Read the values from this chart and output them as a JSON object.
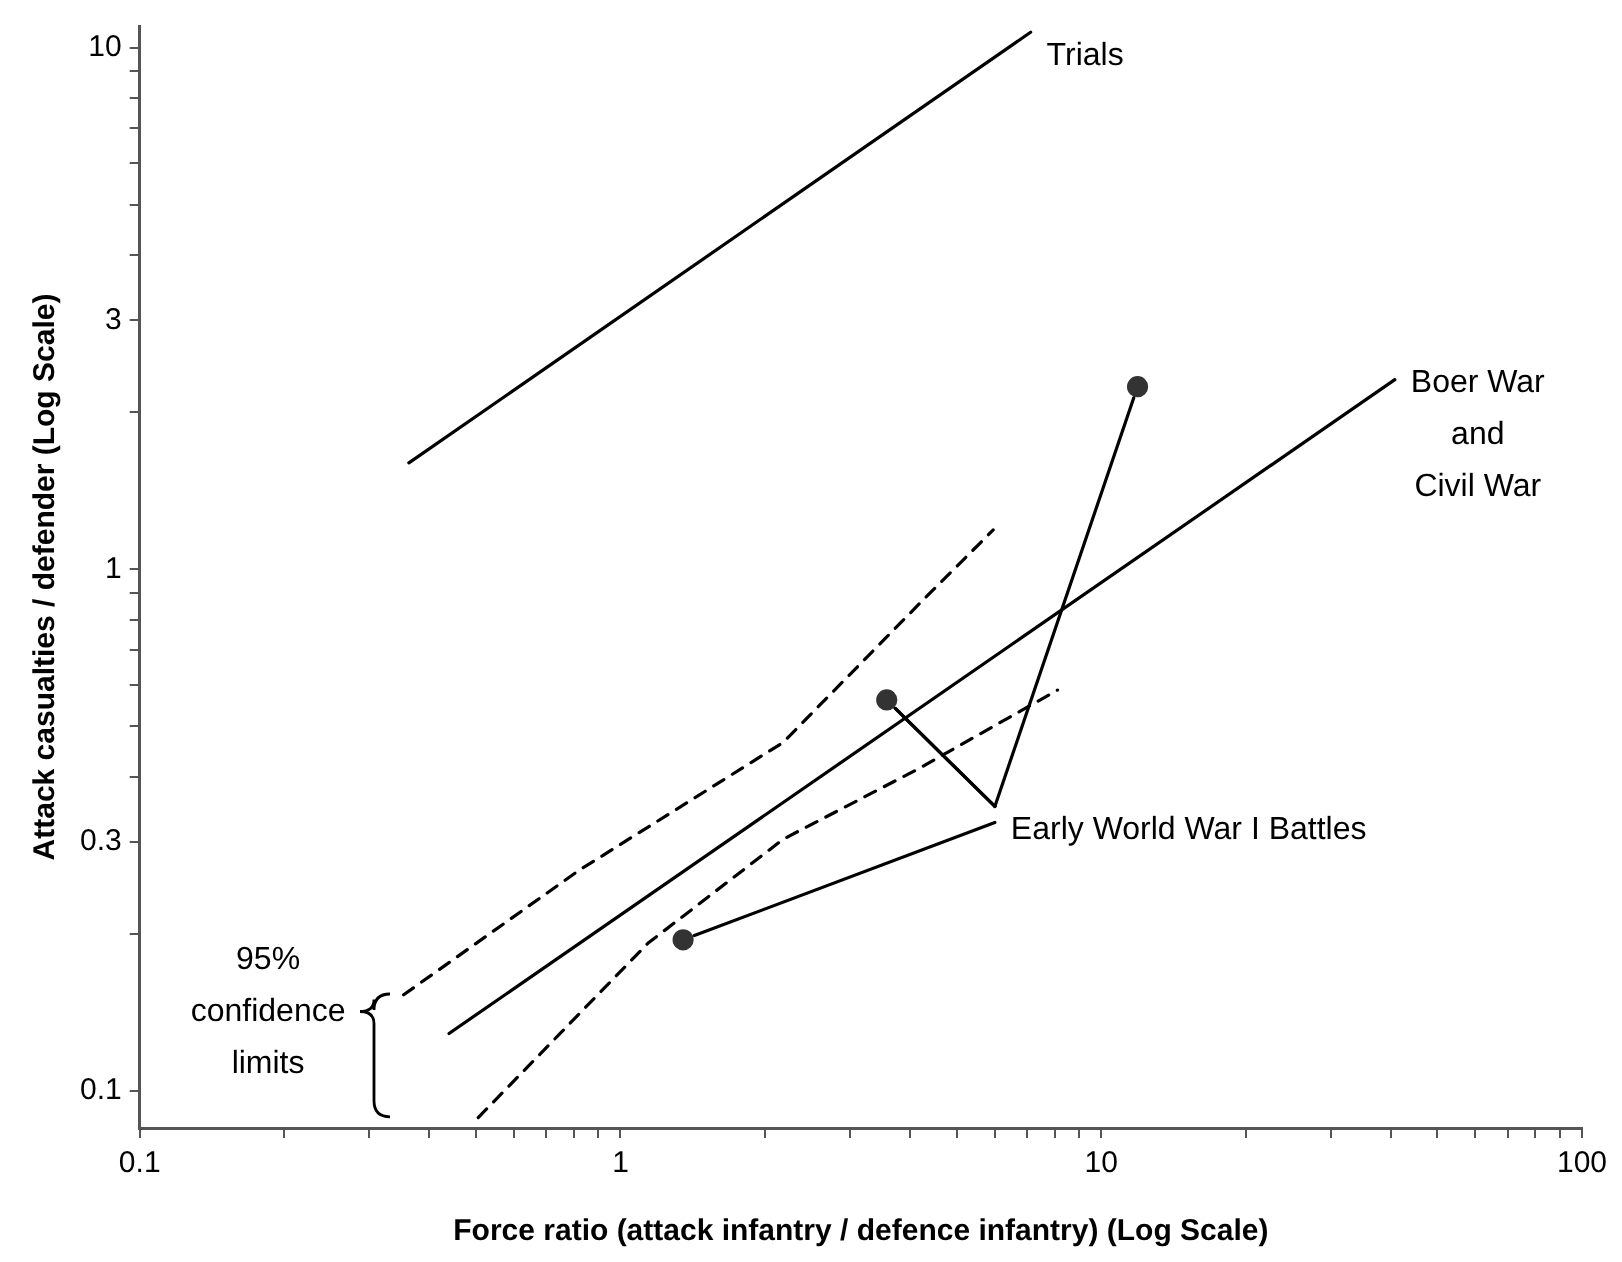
{
  "chart_data": {
    "type": "line",
    "xlabel": "Force ratio (attack infantry / defence infantry) (Log Scale)",
    "ylabel": "Attack casualties / defender (Log Scale)",
    "log": "xy",
    "grid": false,
    "legend": false,
    "xlim": [
      0.1,
      100
    ],
    "xticks": [
      0.1,
      {
        "value": 0.2,
        "label": null
      },
      {
        "value": 0.3,
        "label": null
      },
      {
        "value": 0.4,
        "label": null
      },
      {
        "value": 0.5,
        "label": null
      },
      {
        "value": 0.6,
        "label": null
      },
      {
        "value": 0.7,
        "label": null
      },
      {
        "value": 0.8,
        "label": null
      },
      {
        "value": 0.9,
        "label": null
      },
      1,
      {
        "value": 2,
        "label": null
      },
      {
        "value": 3,
        "label": null
      },
      {
        "value": 4,
        "label": null
      },
      {
        "value": 5,
        "label": null
      },
      {
        "value": 6,
        "label": null
      },
      {
        "value": 7,
        "label": null
      },
      {
        "value": 8,
        "label": null
      },
      {
        "value": 9,
        "label": null
      },
      10,
      {
        "value": 20,
        "label": null
      },
      {
        "value": 30,
        "label": null
      },
      {
        "value": 40,
        "label": null
      },
      {
        "value": 50,
        "label": null
      },
      {
        "value": 60,
        "label": null
      },
      {
        "value": 70,
        "label": null
      },
      {
        "value": 80,
        "label": null
      },
      {
        "value": 90,
        "label": null
      },
      100
    ],
    "ylim": [
      0.085,
      11
    ],
    "yticks": [
      0.1,
      {
        "value": 0.2,
        "label": null
      },
      0.3,
      {
        "value": 0.4,
        "label": null
      },
      {
        "value": 0.5,
        "label": null
      },
      {
        "value": 0.6,
        "label": null
      },
      {
        "value": 0.7,
        "label": null
      },
      {
        "value": 0.8,
        "label": null
      },
      {
        "value": 0.9,
        "label": null
      },
      1,
      {
        "value": 2,
        "label": null
      },
      3,
      {
        "value": 4,
        "label": null
      },
      {
        "value": 5,
        "label": null
      },
      {
        "value": 6,
        "label": null
      },
      {
        "value": 7,
        "label": null
      },
      {
        "value": 8,
        "label": null
      },
      {
        "value": 9,
        "label": null
      },
      10
    ],
    "series": [
      {
        "name": "Trials",
        "color": "#000000",
        "x": [
          0.363,
          7.13
        ],
        "values": [
          1.6,
          10.7
        ]
      },
      {
        "name": "Boer War\nand\nCivil War",
        "color": "#000000",
        "x": [
          0.44,
          40.8
        ],
        "values": [
          0.129,
          2.31
        ]
      },
      {
        "line_style": "dashed",
        "color": "#000000",
        "x": [
          0.354,
          0.82,
          2.18,
          4.24,
          5.96
        ],
        "values": [
          0.153,
          0.265,
          0.466,
          0.87,
          1.19
        ]
      },
      {
        "line_style": "dashed",
        "color": "#000000",
        "x": [
          0.506,
          1.14,
          2.18,
          4.17,
          8.11
        ],
        "values": [
          0.089,
          0.192,
          0.304,
          0.415,
          0.587
        ]
      },
      {
        "type": "scatter",
        "marker": "circle",
        "color": "#333333",
        "x": [
          1.35,
          3.58,
          11.9
        ],
        "values": [
          0.195,
          0.562,
          2.24
        ]
      }
    ],
    "annotations": [
      {
        "text": "Early World War I Battles",
        "x": 3.58,
        "y": 0.562
      },
      "95%\nconfidence\nlimits"
    ]
  }
}
